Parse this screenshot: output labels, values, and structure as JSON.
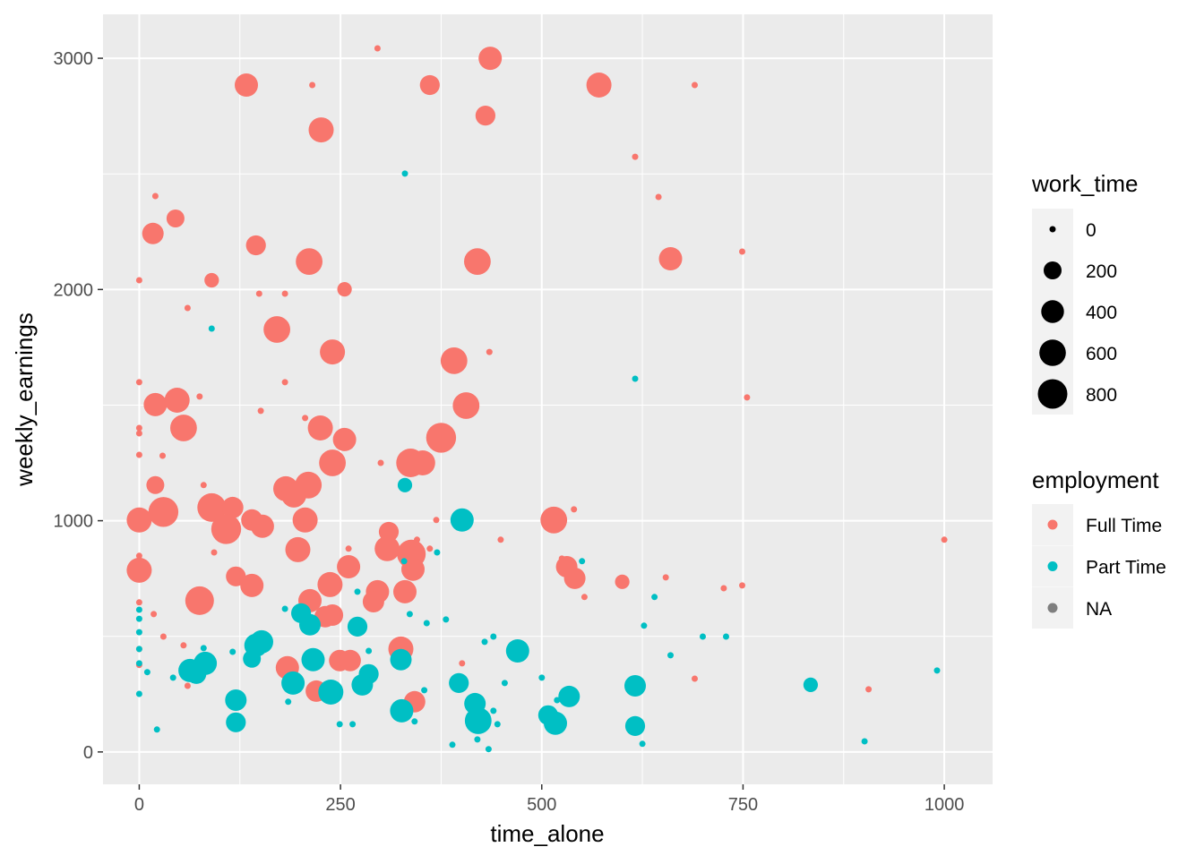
{
  "chart_data": {
    "type": "scatter",
    "xlabel": "time_alone",
    "ylabel": "weekly_earnings",
    "xlim": [
      -45,
      1060
    ],
    "ylim": [
      -140,
      3190
    ],
    "x_ticks": [
      0,
      250,
      500,
      750,
      1000
    ],
    "y_ticks": [
      0,
      1000,
      2000,
      3000
    ],
    "grid": true,
    "legend_position": "right",
    "size_legend": {
      "title": "work_time",
      "values": [
        0,
        200,
        400,
        600,
        800
      ],
      "labels": [
        "0",
        "200",
        "400",
        "600",
        "800"
      ]
    },
    "color_legend": {
      "title": "employment",
      "labels": [
        "Full Time",
        "Part Time",
        "NA"
      ],
      "colors": [
        "#F8766D",
        "#00BFC4",
        "#7F7F7F"
      ]
    },
    "point_format": "[time_alone, weekly_earnings, work_time]",
    "series": [
      {
        "name": "Full Time",
        "color": "#F8766D",
        "points": [
          [
            296,
            3043,
            0
          ],
          [
            436,
            3000,
            430
          ],
          [
            133,
            2884,
            430
          ],
          [
            215,
            2884,
            0
          ],
          [
            361,
            2884,
            270
          ],
          [
            571,
            2884,
            520
          ],
          [
            690,
            2884,
            0
          ],
          [
            430,
            2752,
            270
          ],
          [
            226,
            2690,
            520
          ],
          [
            616,
            2574,
            0
          ],
          [
            20,
            2404,
            0
          ],
          [
            45,
            2307,
            200
          ],
          [
            645,
            2400,
            0
          ],
          [
            17,
            2242,
            340
          ],
          [
            145,
            2191,
            270
          ],
          [
            211,
            2121,
            620
          ],
          [
            420,
            2121,
            620
          ],
          [
            660,
            2133,
            430
          ],
          [
            749,
            2164,
            0
          ],
          [
            0,
            2040,
            0
          ],
          [
            90,
            2040,
            100
          ],
          [
            255,
            2001,
            100
          ],
          [
            149,
            1982,
            0
          ],
          [
            181,
            1982,
            0
          ],
          [
            60,
            1920,
            0
          ],
          [
            171,
            1827,
            620
          ],
          [
            240,
            1730,
            520
          ],
          [
            435,
            1730,
            0
          ],
          [
            391,
            1692,
            620
          ],
          [
            0,
            1599,
            0
          ],
          [
            181,
            1599,
            0
          ],
          [
            75,
            1537,
            0
          ],
          [
            755,
            1533,
            0
          ],
          [
            20,
            1502,
            430
          ],
          [
            47,
            1521,
            520
          ],
          [
            406,
            1498,
            620
          ],
          [
            151,
            1475,
            0
          ],
          [
            0,
            1401,
            0
          ],
          [
            0,
            1378,
            0
          ],
          [
            206,
            1444,
            0
          ],
          [
            55,
            1401,
            620
          ],
          [
            225,
            1401,
            520
          ],
          [
            255,
            1351,
            430
          ],
          [
            375,
            1359,
            830
          ],
          [
            29,
            1281,
            0
          ],
          [
            0,
            1285,
            0
          ],
          [
            300,
            1250,
            0
          ],
          [
            240,
            1250,
            620
          ],
          [
            337,
            1250,
            740
          ],
          [
            352,
            1250,
            520
          ],
          [
            20,
            1154,
            200
          ],
          [
            80,
            1154,
            0
          ],
          [
            210,
            1154,
            620
          ],
          [
            182,
            1138,
            520
          ],
          [
            90,
            1057,
            740
          ],
          [
            116,
            1057,
            340
          ],
          [
            192,
            1111,
            520
          ],
          [
            30,
            1038,
            830
          ],
          [
            0,
            1003,
            520
          ],
          [
            140,
            1003,
            340
          ],
          [
            206,
            1003,
            520
          ],
          [
            108,
            964,
            830
          ],
          [
            153,
            976,
            430
          ],
          [
            369,
            1003,
            0
          ],
          [
            515,
            1003,
            620
          ],
          [
            540,
            1049,
            0
          ],
          [
            449,
            918,
            0
          ],
          [
            1000,
            918,
            0
          ],
          [
            310,
            952,
            270
          ],
          [
            93,
            863,
            0
          ],
          [
            197,
            875,
            520
          ],
          [
            260,
            879,
            0
          ],
          [
            308,
            879,
            520
          ],
          [
            338,
            856,
            740
          ],
          [
            345,
            918,
            0
          ],
          [
            361,
            879,
            0
          ],
          [
            0,
            848,
            0
          ],
          [
            0,
            786,
            520
          ],
          [
            120,
            759,
            270
          ],
          [
            140,
            720,
            430
          ],
          [
            260,
            801,
            430
          ],
          [
            340,
            790,
            430
          ],
          [
            531,
            801,
            340
          ],
          [
            541,
            751,
            340
          ],
          [
            525,
            836,
            0
          ],
          [
            600,
            736,
            100
          ],
          [
            654,
            755,
            0
          ],
          [
            726,
            708,
            0
          ],
          [
            749,
            720,
            0
          ],
          [
            553,
            670,
            0
          ],
          [
            0,
            647,
            0
          ],
          [
            75,
            654,
            740
          ],
          [
            212,
            654,
            430
          ],
          [
            237,
            724,
            520
          ],
          [
            296,
            693,
            430
          ],
          [
            291,
            650,
            340
          ],
          [
            330,
            693,
            430
          ],
          [
            18,
            596,
            0
          ],
          [
            231,
            585,
            340
          ],
          [
            240,
            592,
            340
          ],
          [
            30,
            499,
            0
          ],
          [
            55,
            461,
            0
          ],
          [
            325,
            445,
            520
          ],
          [
            0,
            445,
            0
          ],
          [
            0,
            376,
            0
          ],
          [
            401,
            383,
            0
          ],
          [
            184,
            364,
            430
          ],
          [
            249,
            395,
            340
          ],
          [
            262,
            395,
            340
          ],
          [
            60,
            286,
            0
          ],
          [
            220,
            263,
            340
          ],
          [
            342,
            217,
            340
          ],
          [
            690,
            317,
            0
          ],
          [
            906,
            271,
            0
          ]
        ]
      },
      {
        "name": "Part Time",
        "color": "#00BFC4",
        "points": [
          [
            330,
            2501,
            0
          ],
          [
            90,
            1831,
            0
          ],
          [
            616,
            1614,
            0
          ],
          [
            330,
            1154,
            100
          ],
          [
            401,
            1003,
            430
          ],
          [
            370,
            863,
            0
          ],
          [
            550,
            825,
            0
          ],
          [
            329,
            825,
            0
          ],
          [
            271,
            693,
            0
          ],
          [
            640,
            670,
            0
          ],
          [
            181,
            619,
            0
          ],
          [
            201,
            600,
            270
          ],
          [
            212,
            550,
            340
          ],
          [
            336,
            596,
            0
          ],
          [
            381,
            573,
            0
          ],
          [
            357,
            557,
            0
          ],
          [
            0,
            615,
            0
          ],
          [
            0,
            576,
            0
          ],
          [
            0,
            518,
            0
          ],
          [
            0,
            445,
            0
          ],
          [
            0,
            383,
            0
          ],
          [
            0,
            251,
            0
          ],
          [
            10,
            345,
            0
          ],
          [
            271,
            542,
            270
          ],
          [
            627,
            546,
            0
          ],
          [
            429,
            476,
            0
          ],
          [
            440,
            499,
            0
          ],
          [
            700,
            499,
            0
          ],
          [
            729,
            499,
            0
          ],
          [
            470,
            437,
            430
          ],
          [
            660,
            418,
            0
          ],
          [
            80,
            449,
            0
          ],
          [
            116,
            433,
            0
          ],
          [
            152,
            476,
            430
          ],
          [
            145,
            461,
            430
          ],
          [
            140,
            403,
            200
          ],
          [
            216,
            399,
            430
          ],
          [
            325,
            399,
            340
          ],
          [
            285,
            437,
            0
          ],
          [
            63,
            352,
            430
          ],
          [
            82,
            383,
            430
          ],
          [
            71,
            337,
            270
          ],
          [
            42,
            321,
            0
          ],
          [
            191,
            298,
            430
          ],
          [
            285,
            337,
            270
          ],
          [
            277,
            290,
            340
          ],
          [
            397,
            298,
            270
          ],
          [
            500,
            321,
            0
          ],
          [
            991,
            352,
            0
          ],
          [
            834,
            290,
            100
          ],
          [
            616,
            286,
            340
          ],
          [
            454,
            298,
            0
          ],
          [
            238,
            259,
            520
          ],
          [
            120,
            224,
            340
          ],
          [
            534,
            240,
            340
          ],
          [
            519,
            224,
            0
          ],
          [
            417,
            209,
            340
          ],
          [
            440,
            178,
            0
          ],
          [
            326,
            178,
            430
          ],
          [
            120,
            128,
            270
          ],
          [
            421,
            135,
            620
          ],
          [
            517,
            124,
            430
          ],
          [
            508,
            159,
            270
          ],
          [
            616,
            112,
            270
          ],
          [
            445,
            120,
            0
          ],
          [
            249,
            120,
            0
          ],
          [
            265,
            120,
            0
          ],
          [
            342,
            132,
            0
          ],
          [
            22,
            97,
            0
          ],
          [
            420,
            54,
            0
          ],
          [
            389,
            31,
            0
          ],
          [
            434,
            12,
            0
          ],
          [
            625,
            35,
            0
          ],
          [
            901,
            46,
            0
          ],
          [
            185,
            217,
            0
          ],
          [
            354,
            267,
            0
          ]
        ]
      }
    ]
  }
}
